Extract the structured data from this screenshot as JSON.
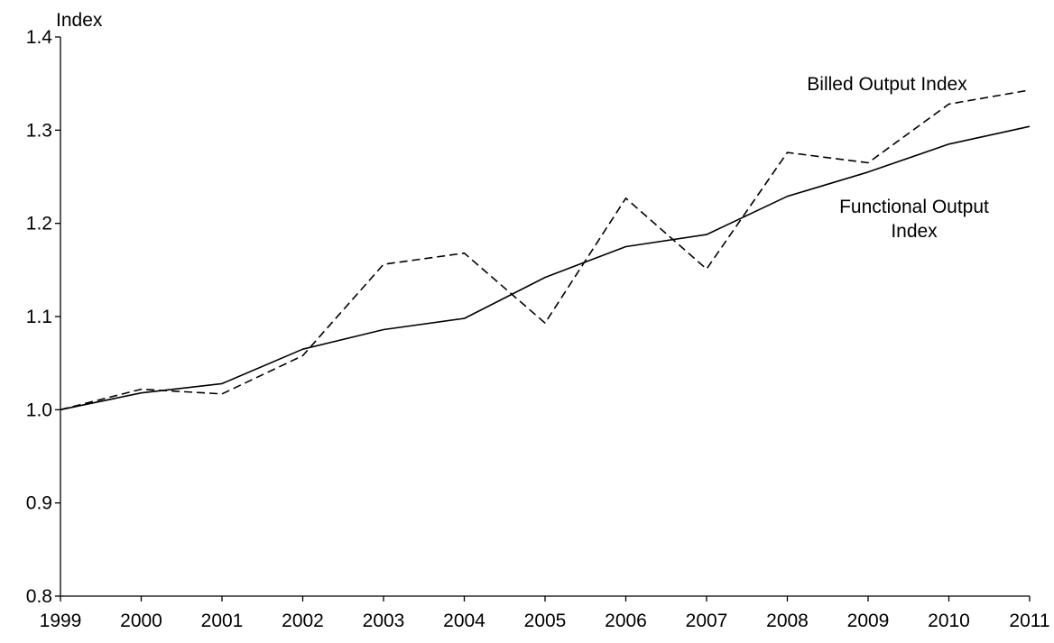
{
  "chart_data": {
    "type": "line",
    "title": "",
    "xlabel": "",
    "ylabel": "Index",
    "x": [
      "1999",
      "2000",
      "2001",
      "2002",
      "2003",
      "2004",
      "2005",
      "2006",
      "2007",
      "2008",
      "2009",
      "2010",
      "2011"
    ],
    "ylim": [
      0.8,
      1.4
    ],
    "yticks": [
      "0.8",
      "0.9",
      "1.0",
      "1.1",
      "1.2",
      "1.3",
      "1.4"
    ],
    "grid": false,
    "legend": "none",
    "series": [
      {
        "name": "Billed Output Index",
        "style": "dashed",
        "color": "#000000",
        "values": [
          1.0,
          1.022,
          1.017,
          1.058,
          1.156,
          1.168,
          1.093,
          1.227,
          1.151,
          1.276,
          1.265,
          1.328,
          1.343
        ]
      },
      {
        "name": "Functional Output Index",
        "style": "solid",
        "color": "#000000",
        "values": [
          1.0,
          1.018,
          1.028,
          1.065,
          1.086,
          1.098,
          1.142,
          1.175,
          1.188,
          1.229,
          1.255,
          1.285,
          1.304
        ]
      }
    ],
    "annotations": [
      {
        "series": "Billed Output Index",
        "lines": [
          "Billed Output Index"
        ]
      },
      {
        "series": "Functional Output Index",
        "lines": [
          "Functional Output",
          "Index"
        ]
      }
    ]
  }
}
